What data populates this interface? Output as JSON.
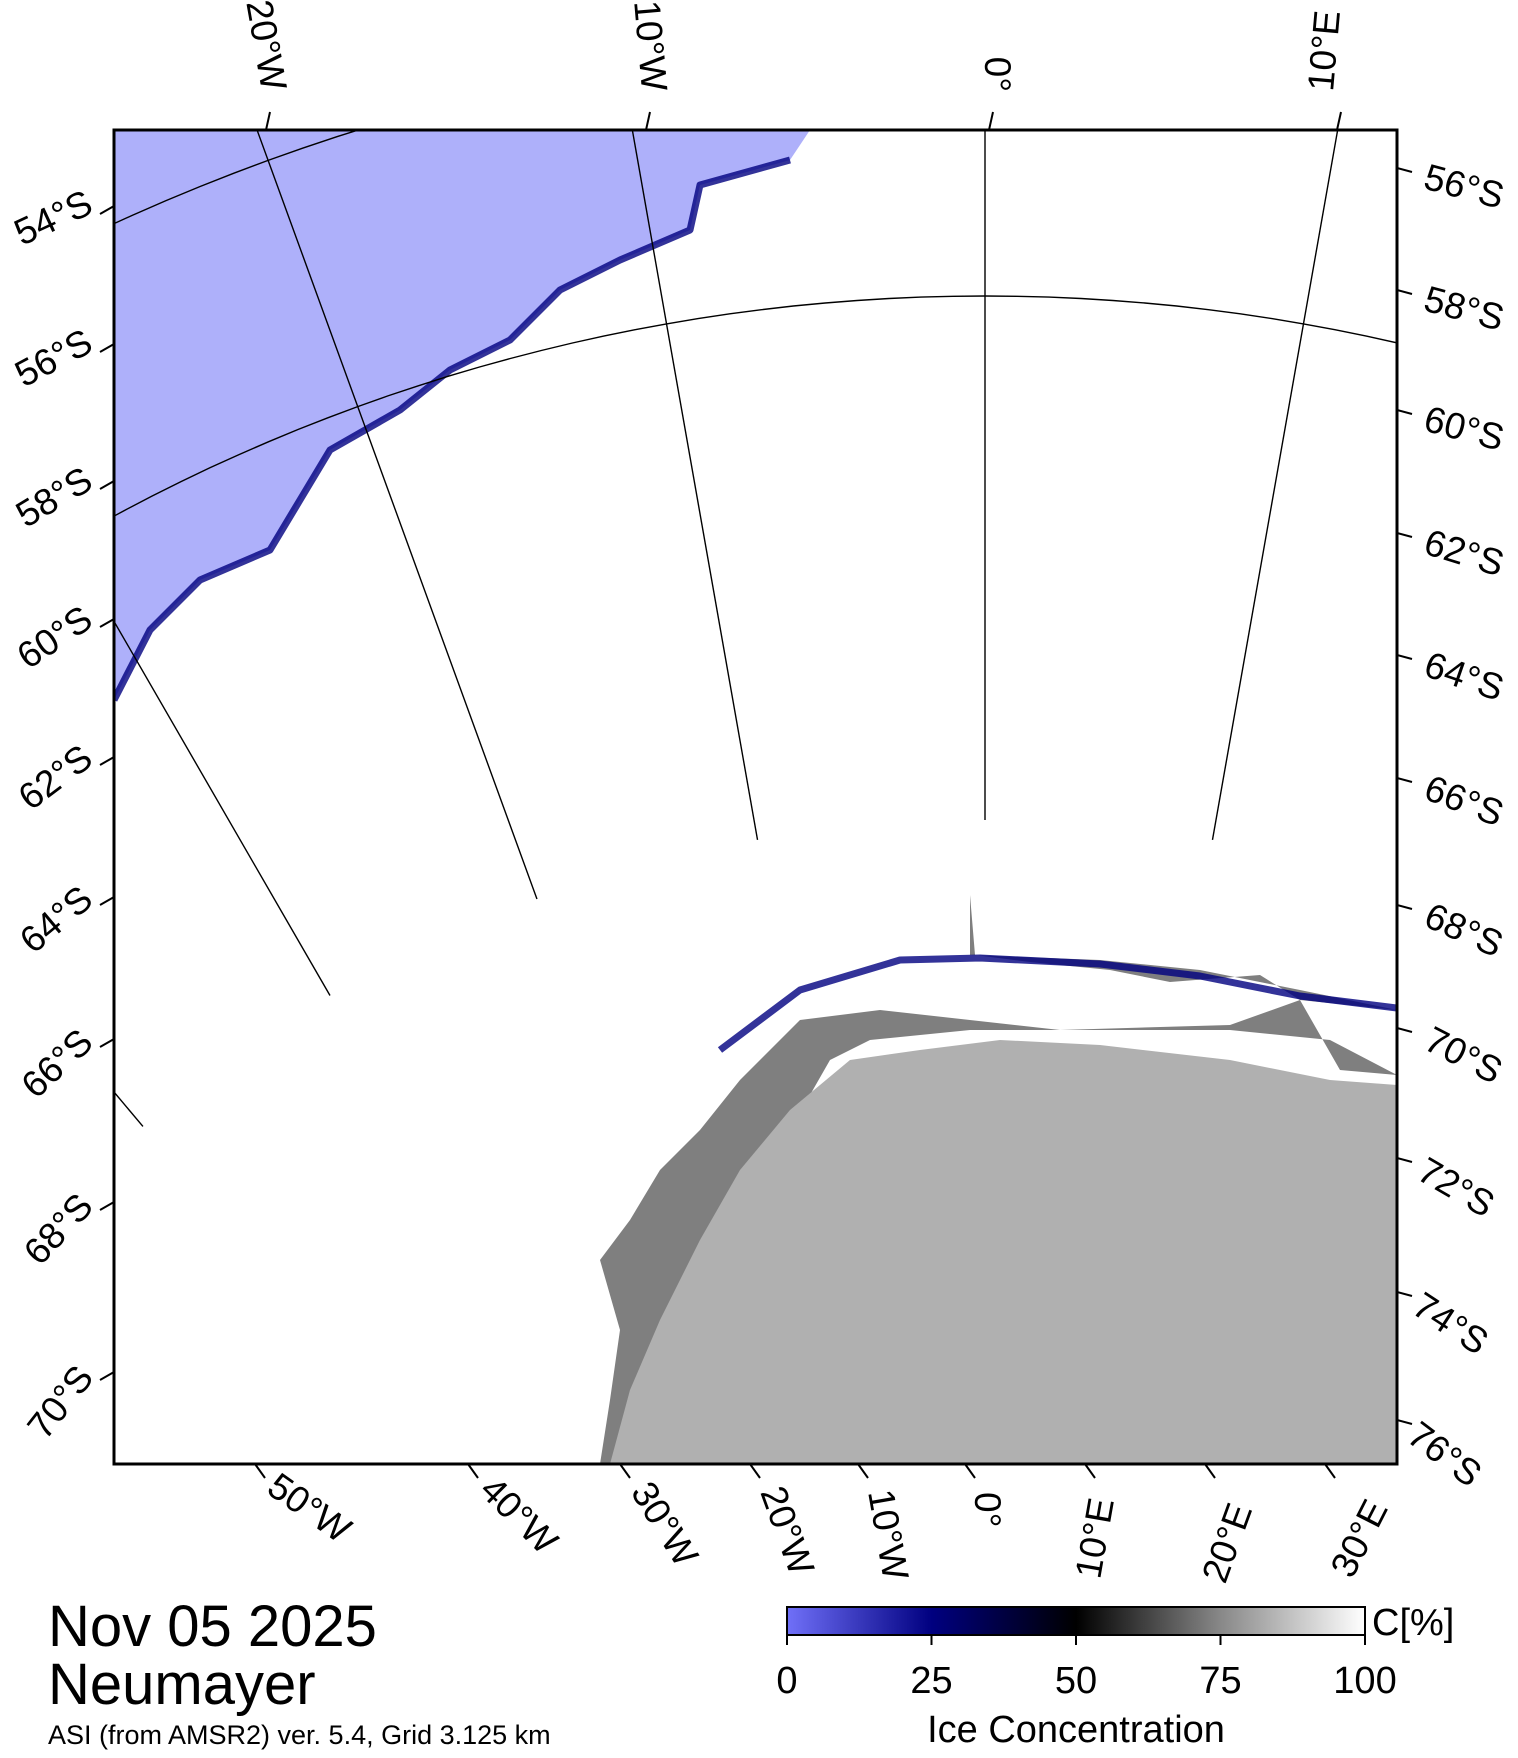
{
  "date": "Nov 05 2025",
  "region": "Neumayer",
  "product": "ASI (from AMSR2) ver. 5.4,  Grid 3.125 km",
  "colors": {
    "open_water": "#aeb0fa",
    "antarctic_land": "#b0b0b0",
    "ice_shelf": "#7f7f7f",
    "low_concentration": "#5a5af0",
    "mid_concentration": "#000080",
    "high_concentration": "#ffffff"
  },
  "top_longitude_labels": [
    "20°W",
    "10°W",
    "0°",
    "10°E"
  ],
  "bottom_longitude_labels": [
    "50°W",
    "40°W",
    "30°W",
    "20°W",
    "10°W",
    "0°",
    "10°E",
    "20°E",
    "30°E"
  ],
  "left_latitude_labels": [
    "54°S",
    "56°S",
    "58°S",
    "60°S",
    "62°S",
    "64°S",
    "66°S",
    "68°S",
    "70°S"
  ],
  "right_latitude_labels": [
    "56°S",
    "58°S",
    "60°S",
    "62°S",
    "64°S",
    "66°S",
    "68°S",
    "70°S",
    "72°S",
    "74°S",
    "76°S"
  ],
  "colorbar": {
    "title": "Ice Concentration",
    "unit": "C[%]",
    "ticks": [
      "0",
      "25",
      "50",
      "75",
      "100"
    ]
  }
}
